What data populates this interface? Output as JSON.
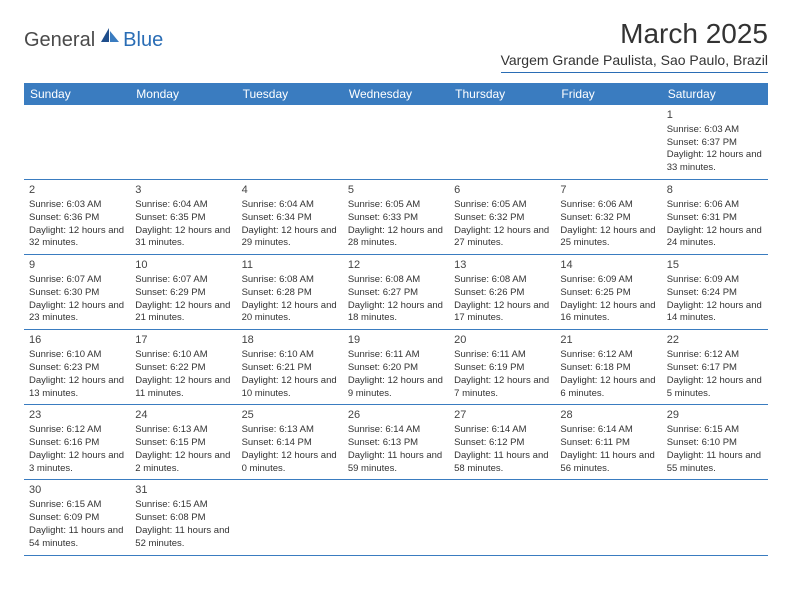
{
  "logo": {
    "text1": "General",
    "text2": "Blue"
  },
  "title": "March 2025",
  "location": "Vargem Grande Paulista, Sao Paulo, Brazil",
  "colors": {
    "header_bg": "#3a7cc0",
    "header_text": "#ffffff",
    "border": "#2a6db5",
    "text": "#333333",
    "logo_gray": "#4a4a4a",
    "logo_blue": "#2a6db5"
  },
  "dayNames": [
    "Sunday",
    "Monday",
    "Tuesday",
    "Wednesday",
    "Thursday",
    "Friday",
    "Saturday"
  ],
  "weeks": [
    [
      null,
      null,
      null,
      null,
      null,
      null,
      {
        "n": "1",
        "sr": "6:03 AM",
        "ss": "6:37 PM",
        "dl": "12 hours and 33 minutes."
      }
    ],
    [
      {
        "n": "2",
        "sr": "6:03 AM",
        "ss": "6:36 PM",
        "dl": "12 hours and 32 minutes."
      },
      {
        "n": "3",
        "sr": "6:04 AM",
        "ss": "6:35 PM",
        "dl": "12 hours and 31 minutes."
      },
      {
        "n": "4",
        "sr": "6:04 AM",
        "ss": "6:34 PM",
        "dl": "12 hours and 29 minutes."
      },
      {
        "n": "5",
        "sr": "6:05 AM",
        "ss": "6:33 PM",
        "dl": "12 hours and 28 minutes."
      },
      {
        "n": "6",
        "sr": "6:05 AM",
        "ss": "6:32 PM",
        "dl": "12 hours and 27 minutes."
      },
      {
        "n": "7",
        "sr": "6:06 AM",
        "ss": "6:32 PM",
        "dl": "12 hours and 25 minutes."
      },
      {
        "n": "8",
        "sr": "6:06 AM",
        "ss": "6:31 PM",
        "dl": "12 hours and 24 minutes."
      }
    ],
    [
      {
        "n": "9",
        "sr": "6:07 AM",
        "ss": "6:30 PM",
        "dl": "12 hours and 23 minutes."
      },
      {
        "n": "10",
        "sr": "6:07 AM",
        "ss": "6:29 PM",
        "dl": "12 hours and 21 minutes."
      },
      {
        "n": "11",
        "sr": "6:08 AM",
        "ss": "6:28 PM",
        "dl": "12 hours and 20 minutes."
      },
      {
        "n": "12",
        "sr": "6:08 AM",
        "ss": "6:27 PM",
        "dl": "12 hours and 18 minutes."
      },
      {
        "n": "13",
        "sr": "6:08 AM",
        "ss": "6:26 PM",
        "dl": "12 hours and 17 minutes."
      },
      {
        "n": "14",
        "sr": "6:09 AM",
        "ss": "6:25 PM",
        "dl": "12 hours and 16 minutes."
      },
      {
        "n": "15",
        "sr": "6:09 AM",
        "ss": "6:24 PM",
        "dl": "12 hours and 14 minutes."
      }
    ],
    [
      {
        "n": "16",
        "sr": "6:10 AM",
        "ss": "6:23 PM",
        "dl": "12 hours and 13 minutes."
      },
      {
        "n": "17",
        "sr": "6:10 AM",
        "ss": "6:22 PM",
        "dl": "12 hours and 11 minutes."
      },
      {
        "n": "18",
        "sr": "6:10 AM",
        "ss": "6:21 PM",
        "dl": "12 hours and 10 minutes."
      },
      {
        "n": "19",
        "sr": "6:11 AM",
        "ss": "6:20 PM",
        "dl": "12 hours and 9 minutes."
      },
      {
        "n": "20",
        "sr": "6:11 AM",
        "ss": "6:19 PM",
        "dl": "12 hours and 7 minutes."
      },
      {
        "n": "21",
        "sr": "6:12 AM",
        "ss": "6:18 PM",
        "dl": "12 hours and 6 minutes."
      },
      {
        "n": "22",
        "sr": "6:12 AM",
        "ss": "6:17 PM",
        "dl": "12 hours and 5 minutes."
      }
    ],
    [
      {
        "n": "23",
        "sr": "6:12 AM",
        "ss": "6:16 PM",
        "dl": "12 hours and 3 minutes."
      },
      {
        "n": "24",
        "sr": "6:13 AM",
        "ss": "6:15 PM",
        "dl": "12 hours and 2 minutes."
      },
      {
        "n": "25",
        "sr": "6:13 AM",
        "ss": "6:14 PM",
        "dl": "12 hours and 0 minutes."
      },
      {
        "n": "26",
        "sr": "6:14 AM",
        "ss": "6:13 PM",
        "dl": "11 hours and 59 minutes."
      },
      {
        "n": "27",
        "sr": "6:14 AM",
        "ss": "6:12 PM",
        "dl": "11 hours and 58 minutes."
      },
      {
        "n": "28",
        "sr": "6:14 AM",
        "ss": "6:11 PM",
        "dl": "11 hours and 56 minutes."
      },
      {
        "n": "29",
        "sr": "6:15 AM",
        "ss": "6:10 PM",
        "dl": "11 hours and 55 minutes."
      }
    ],
    [
      {
        "n": "30",
        "sr": "6:15 AM",
        "ss": "6:09 PM",
        "dl": "11 hours and 54 minutes."
      },
      {
        "n": "31",
        "sr": "6:15 AM",
        "ss": "6:08 PM",
        "dl": "11 hours and 52 minutes."
      },
      null,
      null,
      null,
      null,
      null
    ]
  ],
  "labels": {
    "sunrise": "Sunrise:",
    "sunset": "Sunset:",
    "daylight": "Daylight:"
  }
}
